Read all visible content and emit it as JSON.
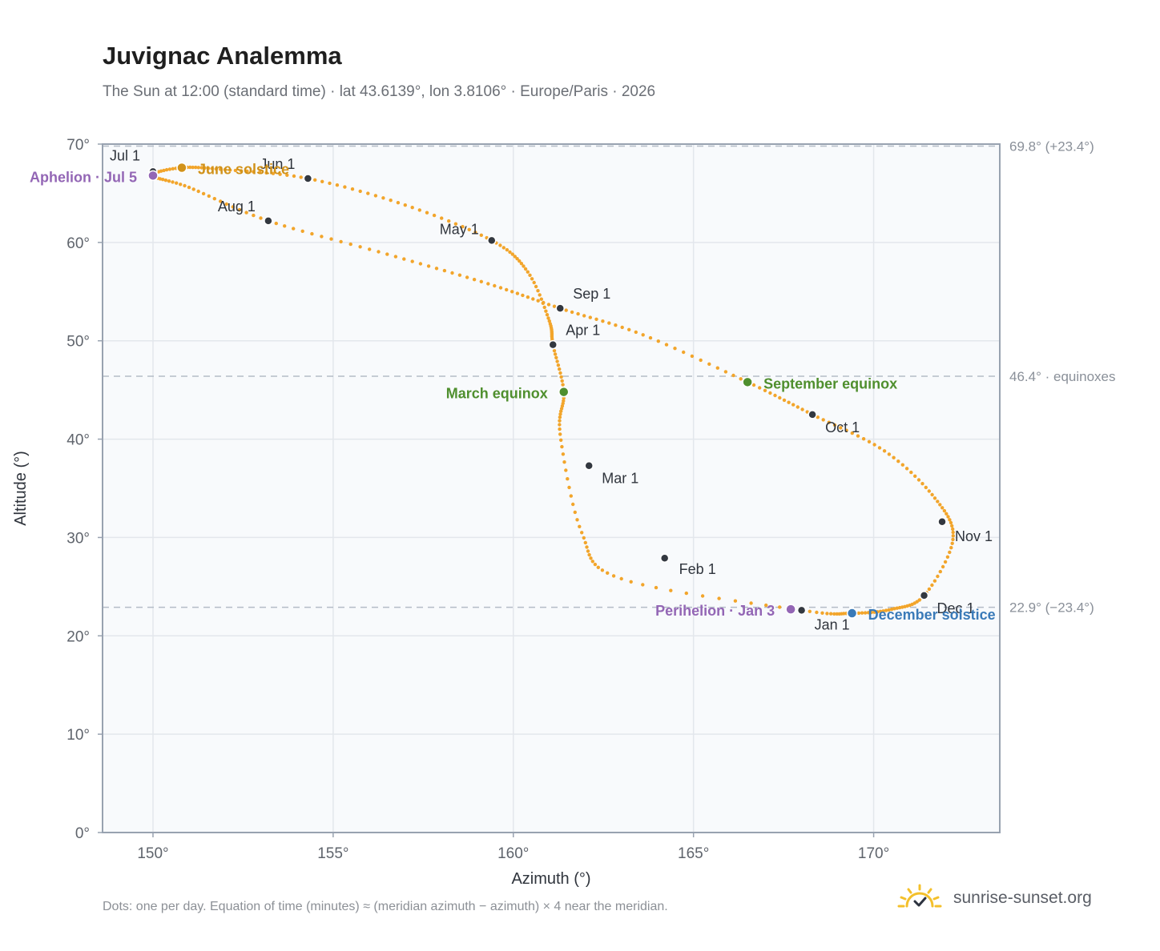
{
  "header": {
    "title": "Juvignac Analemma",
    "subtitle": "The Sun at 12:00 (standard time) · lat 43.6139°, lon 3.8106° · Europe/Paris · 2026"
  },
  "footer": {
    "note": "Dots: one per day. Equation of time (minutes) ≈ (meridian azimuth − azimuth) × 4 near the meridian.",
    "brand": "sunrise-sunset.org",
    "brand_icon": "sun-checkmark-icon"
  },
  "colors": {
    "curve": "#f2a52b",
    "marker": "#333840",
    "equinox": "#4f8f2e",
    "june_solstice": "#d1921a",
    "december_solstice": "#3a7ab8",
    "apsis": "#9366b5",
    "reference_line": "#b4bcc6",
    "plot_bg": "#f8fafc",
    "frame": "#98a2b0"
  },
  "chart_data": {
    "type": "scatter",
    "xlabel": "Azimuth (°)",
    "ylabel": "Altitude (°)",
    "xlim": [
      148.6,
      173.5
    ],
    "ylim": [
      0,
      70
    ],
    "xticks": [
      150,
      155,
      160,
      165,
      170
    ],
    "xtick_labels": [
      "150°",
      "155°",
      "160°",
      "165°",
      "170°"
    ],
    "yticks": [
      0,
      10,
      20,
      30,
      40,
      50,
      60,
      70
    ],
    "ytick_labels": [
      "0°",
      "10°",
      "20°",
      "30°",
      "40°",
      "50°",
      "60°",
      "70°"
    ],
    "grid": true,
    "daily_path": [
      [
        168.0,
        22.6
      ],
      [
        163.0,
        25.8
      ],
      [
        161.9,
        30.5
      ],
      [
        161.3,
        40.5
      ],
      [
        161.4,
        44.8
      ],
      [
        161.1,
        49.6
      ],
      [
        161.0,
        52.0
      ],
      [
        160.4,
        57.0
      ],
      [
        159.4,
        60.2
      ],
      [
        157.0,
        63.8
      ],
      [
        154.3,
        66.5
      ],
      [
        152.0,
        67.4
      ],
      [
        150.8,
        67.6
      ],
      [
        150.0,
        66.8
      ],
      [
        151.0,
        65.6
      ],
      [
        153.2,
        62.2
      ],
      [
        156.5,
        58.8
      ],
      [
        159.3,
        55.8
      ],
      [
        161.3,
        53.3
      ],
      [
        163.6,
        50.6
      ],
      [
        166.5,
        45.8
      ],
      [
        168.3,
        42.5
      ],
      [
        170.3,
        38.8
      ],
      [
        171.7,
        34.0
      ],
      [
        172.2,
        29.8
      ],
      [
        171.4,
        24.1
      ],
      [
        170.5,
        22.7
      ],
      [
        169.4,
        22.3
      ],
      [
        168.0,
        22.6
      ]
    ],
    "month_markers": [
      {
        "label": "Jan 1",
        "az": 168.0,
        "alt": 22.6
      },
      {
        "label": "Feb 1",
        "az": 164.2,
        "alt": 27.9
      },
      {
        "label": "Mar 1",
        "az": 162.1,
        "alt": 37.3
      },
      {
        "label": "Apr 1",
        "az": 161.1,
        "alt": 49.6
      },
      {
        "label": "May 1",
        "az": 159.4,
        "alt": 60.2
      },
      {
        "label": "Jun 1",
        "az": 154.3,
        "alt": 66.5
      },
      {
        "label": "Jul 1",
        "az": 150.0,
        "alt": 67.2
      },
      {
        "label": "Aug 1",
        "az": 153.2,
        "alt": 62.2
      },
      {
        "label": "Sep 1",
        "az": 161.3,
        "alt": 53.3
      },
      {
        "label": "Oct 1",
        "az": 168.3,
        "alt": 42.5
      },
      {
        "label": "Nov 1",
        "az": 171.9,
        "alt": 31.6
      },
      {
        "label": "Dec 1",
        "az": 171.4,
        "alt": 24.1
      }
    ],
    "events": [
      {
        "label": "March equinox",
        "az": 161.4,
        "alt": 44.8,
        "kind": "equinox"
      },
      {
        "label": "June solstice",
        "az": 150.8,
        "alt": 67.6,
        "kind": "june_solstice"
      },
      {
        "label": "September equinox",
        "az": 166.5,
        "alt": 45.8,
        "kind": "equinox"
      },
      {
        "label": "December solstice",
        "az": 169.4,
        "alt": 22.3,
        "kind": "december_solstice"
      },
      {
        "label": "Perihelion · Jan 3",
        "az": 167.7,
        "alt": 22.7,
        "kind": "apsis"
      },
      {
        "label": "Aphelion · Jul 5",
        "az": 150.0,
        "alt": 66.8,
        "kind": "apsis"
      }
    ],
    "reference_lines": [
      {
        "alt": 69.8,
        "label": "69.8° (+23.4°)"
      },
      {
        "alt": 46.4,
        "label": "46.4° · equinoxes"
      },
      {
        "alt": 22.9,
        "label": "22.9° (−23.4°)"
      }
    ]
  }
}
